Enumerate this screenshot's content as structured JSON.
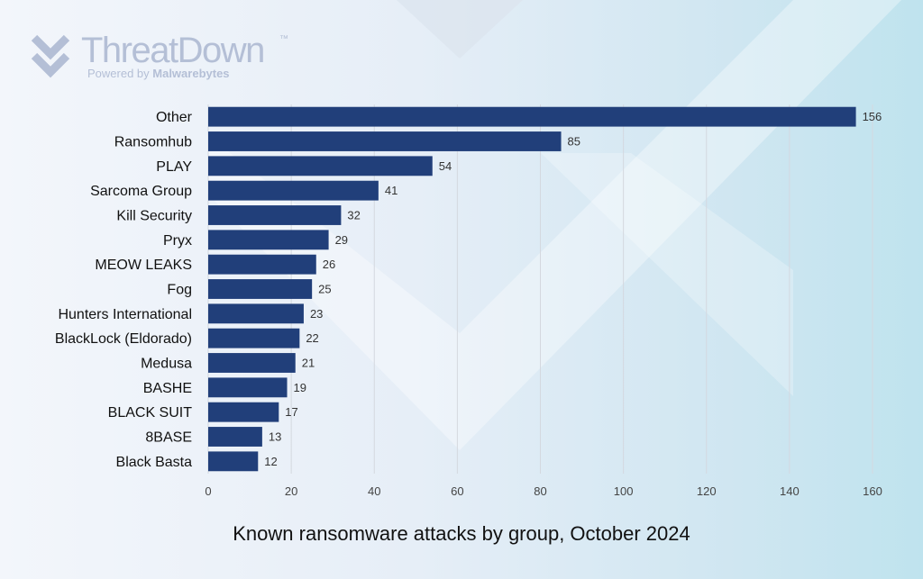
{
  "brand": {
    "name": "ThreatDown",
    "trademark": "™",
    "powered_prefix": "Powered by ",
    "powered_brand": "Malwarebytes"
  },
  "colors": {
    "bar": "#213f7a",
    "grid": "#d4d8df",
    "logo": "#b4bfd6"
  },
  "chart_data": {
    "type": "bar",
    "orientation": "horizontal",
    "title": "Known ransomware attacks by group, October 2024",
    "categories": [
      "Other",
      "Ransomhub",
      "PLAY",
      "Sarcoma Group",
      "Kill Security",
      "Pryx",
      "MEOW LEAKS",
      "Fog",
      "Hunters International",
      "BlackLock (Eldorado)",
      "Medusa",
      "BASHE",
      "BLACK SUIT",
      "8BASE",
      "Black Basta"
    ],
    "values": [
      156,
      85,
      54,
      41,
      32,
      29,
      26,
      25,
      23,
      22,
      21,
      19,
      17,
      13,
      12
    ],
    "xlim": [
      0,
      160
    ],
    "x_ticks": [
      0,
      20,
      40,
      60,
      80,
      100,
      120,
      140,
      160
    ],
    "grid": "vertical",
    "data_labels": true,
    "legend": "none"
  }
}
